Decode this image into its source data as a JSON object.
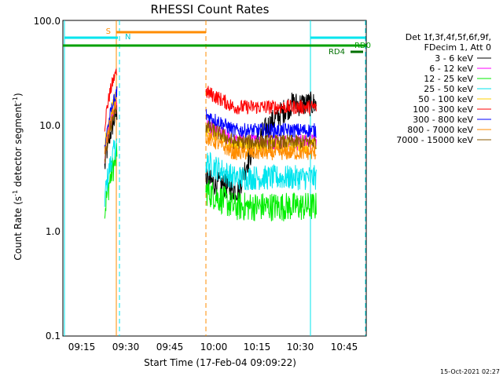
{
  "chart_data": {
    "type": "line",
    "title": "RHESSI Count Rates",
    "xlabel": "Start Time (17-Feb-04 09:09:22)",
    "ylabel_prefix": "Count Rate (s",
    "ylabel_sup1": "-1",
    "ylabel_mid": " detector segment",
    "ylabel_sup2": "-1",
    "ylabel_suffix": ")",
    "yscale": "log",
    "ylim": [
      0.1,
      100
    ],
    "xlim_minutes": [
      9.1,
      10.8
    ],
    "x_ticks": [
      "09:15",
      "09:30",
      "09:45",
      "10:00",
      "10:15",
      "10:30",
      "10:45"
    ],
    "y_ticks": [
      "0.1",
      "1.0",
      "10.0",
      "100.0"
    ],
    "legend_header": [
      "Det 1f,3f,4f,5f,6f,9f,",
      "FDecim 1, Att 0"
    ],
    "series": [
      {
        "name": "3 - 6 keV",
        "color": "#000000"
      },
      {
        "name": "6 - 12 keV",
        "color": "#ff00ff"
      },
      {
        "name": "12 - 25 keV",
        "color": "#00ee00"
      },
      {
        "name": "25 - 50 keV",
        "color": "#00e5ee"
      },
      {
        "name": "50 - 100 keV",
        "color": "#ffd000"
      },
      {
        "name": "100 - 300 keV",
        "color": "#ff0000"
      },
      {
        "name": "300 - 800 keV",
        "color": "#0000ff"
      },
      {
        "name": "800 - 7000 keV",
        "color": "#ff8c00"
      },
      {
        "name": "7000 - 15000 keV",
        "color": "#8b5a00"
      }
    ],
    "segments_approx": [
      {
        "start": "09:23",
        "end": "09:27",
        "levels": {
          "3 - 6 keV": 8,
          "6 - 12 keV": 10,
          "12 - 25 keV": 3,
          "25 - 50 keV": 4,
          "50 - 100 keV": 12,
          "100 - 300 keV": 20,
          "300 - 800 keV": 12,
          "800 - 7000 keV": 10,
          "7000 - 15000 keV": 9
        }
      },
      {
        "start": "09:56",
        "end": "10:32",
        "levels": {
          "3 - 6 keV": 3,
          "6 - 12 keV": 7,
          "12 - 25 keV": 1.7,
          "25 - 50 keV": 3.2,
          "50 - 100 keV": 6.5,
          "100 - 300 keV": 15,
          "300 - 800 keV": 9,
          "800 - 7000 keV": 5.5,
          "7000 - 15000 keV": 7
        }
      }
    ],
    "flag_bars": {
      "S": {
        "label": "S",
        "color": "#ff8c00"
      },
      "N": {
        "label": "N",
        "color": "#00e5ee"
      },
      "RD0": {
        "label": "RD0",
        "color": "#00a000"
      },
      "RD4": {
        "label": "RD4",
        "color": "#007000"
      }
    },
    "footer_date": "15-Oct-2021 02:27"
  }
}
